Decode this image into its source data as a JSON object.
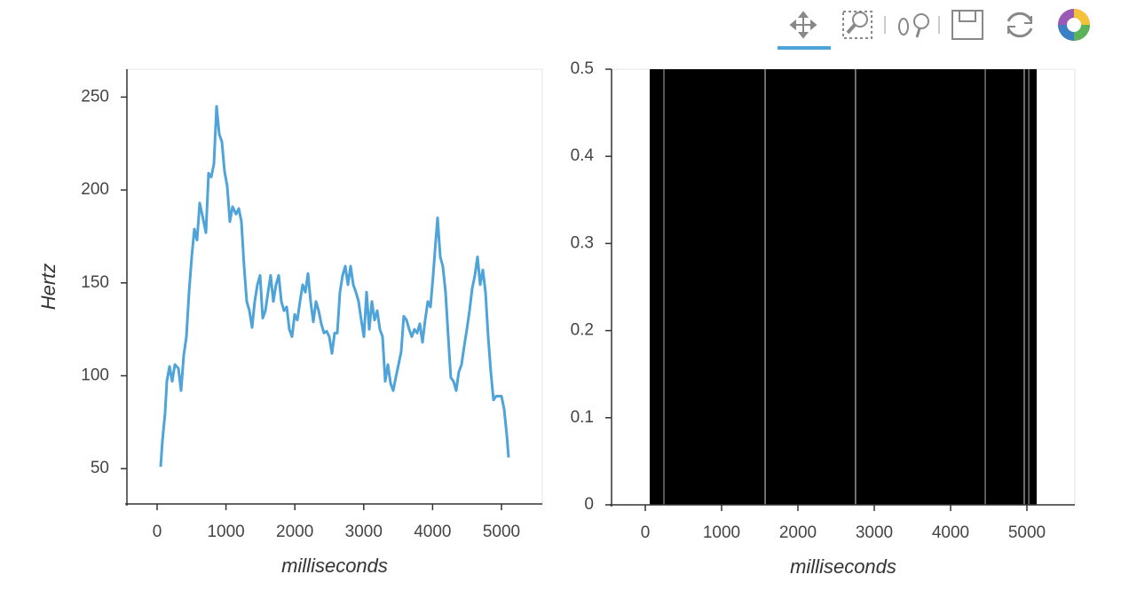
{
  "chart_data": [
    {
      "type": "line",
      "ylabel": "Hertz",
      "xlabel": "milliseconds",
      "x": [
        52,
        77,
        116,
        142,
        180,
        219,
        258,
        309,
        348,
        387,
        425,
        464,
        503,
        541,
        580,
        619,
        670,
        709,
        747,
        786,
        825,
        863,
        902,
        941,
        979,
        1018,
        1057,
        1095,
        1147,
        1186,
        1224,
        1263,
        1302,
        1340,
        1379,
        1418,
        1456,
        1495,
        1534,
        1572,
        1611,
        1649,
        1688,
        1727,
        1765,
        1804,
        1843,
        1881,
        1920,
        1959,
        1997,
        2036,
        2075,
        2113,
        2152,
        2191,
        2229,
        2268,
        2307,
        2345,
        2384,
        2423,
        2461,
        2500,
        2539,
        2577,
        2616,
        2655,
        2694,
        2732,
        2771,
        2809,
        2848,
        2887,
        2925,
        2964,
        3003,
        3041,
        3080,
        3119,
        3157,
        3196,
        3235,
        3273,
        3312,
        3351,
        3389,
        3428,
        3466,
        3505,
        3544,
        3582,
        3621,
        3660,
        3698,
        3737,
        3776,
        3814,
        3853,
        3892,
        3930,
        3969,
        4008,
        4046,
        4072,
        4111,
        4149,
        4188,
        4227,
        4265,
        4304,
        4343,
        4381,
        4420,
        4459,
        4497,
        4536,
        4575,
        4613,
        4652,
        4691,
        4729,
        4768,
        4807,
        4845,
        4884,
        4923,
        4961,
        5000,
        5039,
        5077,
        5103
      ],
      "series": [
        {
          "color": "#4ea3d9",
          "values": [
            51,
            65,
            80,
            97,
            105,
            97,
            106,
            104,
            92,
            111,
            121,
            145,
            164,
            179,
            173,
            193,
            184,
            177,
            209,
            207,
            214,
            245,
            230,
            226,
            210,
            202,
            183,
            191,
            187,
            190,
            183,
            159,
            140,
            135,
            126,
            140,
            149,
            154,
            131,
            135,
            145,
            154,
            140,
            149,
            154,
            140,
            135,
            137,
            125,
            121,
            133,
            130,
            140,
            149,
            145,
            155,
            140,
            129,
            140,
            135,
            128,
            123,
            124,
            121,
            112,
            123,
            123,
            145,
            154,
            159,
            149,
            159,
            149,
            145,
            140,
            130,
            121,
            145,
            125,
            140,
            130,
            135,
            125,
            121,
            97,
            106,
            96,
            92,
            99,
            106,
            113,
            132,
            130,
            125,
            121,
            125,
            123,
            128,
            118,
            130,
            140,
            137,
            154,
            173,
            185,
            164,
            159,
            145,
            121,
            99,
            97,
            92,
            102,
            106,
            116,
            125,
            135,
            147,
            154,
            164,
            149,
            157,
            145,
            121,
            102,
            87,
            89,
            89,
            89,
            82,
            68,
            56
          ]
        }
      ],
      "xlim": [
        -438,
        5593
      ],
      "ylim": [
        31,
        265
      ],
      "xticks": [
        0,
        1000,
        2000,
        3000,
        4000,
        5000
      ],
      "yticks": [
        50,
        100,
        150,
        200,
        250
      ]
    },
    {
      "type": "vspan",
      "xlabel": "milliseconds",
      "color": "#000000",
      "starts": [
        58,
        248,
        1575,
        2760,
        4458,
        4970,
        5028
      ],
      "ends": [
        240,
        1565,
        2750,
        4450,
        4960,
        5020,
        5128
      ],
      "xlim": [
        -442,
        5628
      ],
      "ylim": [
        0,
        0.5
      ],
      "xticks": [
        0,
        1000,
        2000,
        3000,
        4000,
        5000
      ],
      "yticks": [
        0,
        0.1,
        0.2,
        0.3,
        0.4,
        0.5
      ]
    }
  ]
}
